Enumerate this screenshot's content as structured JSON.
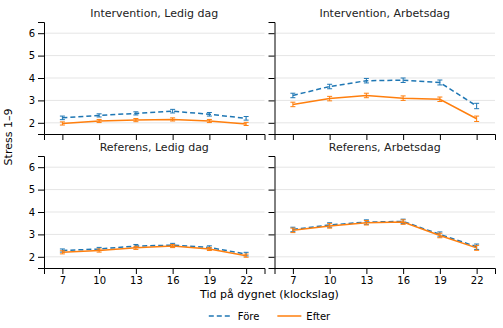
{
  "chart_data": [
    {
      "type": "line",
      "title": "Intervention, Ledig dag",
      "x": [
        7,
        10,
        13,
        16,
        19,
        22
      ],
      "series": [
        {
          "name": "Före",
          "line_style": "dashed",
          "values": [
            2.22,
            2.33,
            2.42,
            2.52,
            2.38,
            2.2
          ],
          "errors": [
            0.08,
            0.07,
            0.07,
            0.08,
            0.08,
            0.08
          ]
        },
        {
          "name": "Efter",
          "line_style": "solid",
          "values": [
            1.97,
            2.08,
            2.12,
            2.15,
            2.08,
            1.95
          ],
          "errors": [
            0.07,
            0.07,
            0.07,
            0.07,
            0.07,
            0.07
          ]
        }
      ],
      "xlim": [
        5.5,
        23.5
      ],
      "xticks": [
        7,
        10,
        13,
        16,
        19,
        22
      ],
      "ylim": [
        1.5,
        6.5
      ],
      "yticks": [
        2,
        3,
        4,
        5,
        6
      ],
      "grid": true,
      "tick_labels": "y",
      "ylabel": "Stress 1–9",
      "legend": "bottom"
    },
    {
      "type": "line",
      "title": "Intervention, Arbetsdag",
      "x": [
        7,
        10,
        13,
        16,
        19,
        22
      ],
      "series": [
        {
          "name": "Före",
          "line_style": "dashed",
          "values": [
            3.22,
            3.62,
            3.88,
            3.9,
            3.8,
            2.75
          ],
          "errors": [
            0.1,
            0.1,
            0.1,
            0.1,
            0.11,
            0.12
          ]
        },
        {
          "name": "Efter",
          "line_style": "solid",
          "values": [
            2.82,
            3.08,
            3.22,
            3.1,
            3.05,
            2.18
          ],
          "errors": [
            0.1,
            0.1,
            0.1,
            0.1,
            0.1,
            0.12
          ]
        }
      ],
      "xlim": [
        5.5,
        23.5
      ],
      "xticks": [
        7,
        10,
        13,
        16,
        19,
        22
      ],
      "ylim": [
        1.5,
        6.5
      ],
      "yticks": [
        2,
        3,
        4,
        5,
        6
      ],
      "grid": true,
      "tick_labels": false
    },
    {
      "type": "line",
      "title": "Referens, Ledig dag",
      "x": [
        7,
        10,
        13,
        16,
        19,
        22
      ],
      "series": [
        {
          "name": "Före",
          "line_style": "dashed",
          "values": [
            2.28,
            2.35,
            2.48,
            2.52,
            2.42,
            2.12
          ],
          "errors": [
            0.07,
            0.07,
            0.07,
            0.08,
            0.07,
            0.08
          ]
        },
        {
          "name": "Efter",
          "line_style": "solid",
          "values": [
            2.2,
            2.28,
            2.4,
            2.48,
            2.35,
            2.05
          ],
          "errors": [
            0.07,
            0.07,
            0.07,
            0.07,
            0.07,
            0.07
          ]
        }
      ],
      "xlim": [
        5.5,
        23.5
      ],
      "xticks": [
        7,
        10,
        13,
        16,
        19,
        22
      ],
      "ylim": [
        1.5,
        6.5
      ],
      "yticks": [
        2,
        3,
        4,
        5,
        6
      ],
      "grid": true,
      "xlabel": "Tid på dygnet (klockslag)"
    },
    {
      "type": "line",
      "title": "Referens, Arbetsdag",
      "x": [
        7,
        10,
        13,
        16,
        19,
        22
      ],
      "series": [
        {
          "name": "Före",
          "line_style": "dashed",
          "values": [
            3.22,
            3.42,
            3.55,
            3.58,
            3.0,
            2.45
          ],
          "errors": [
            0.1,
            0.1,
            0.1,
            0.1,
            0.11,
            0.12
          ]
        },
        {
          "name": "Efter",
          "line_style": "solid",
          "values": [
            3.18,
            3.38,
            3.52,
            3.55,
            2.95,
            2.4
          ],
          "errors": [
            0.1,
            0.1,
            0.1,
            0.1,
            0.1,
            0.11
          ]
        }
      ],
      "xlim": [
        5.5,
        23.5
      ],
      "xticks": [
        7,
        10,
        13,
        16,
        19,
        22
      ],
      "ylim": [
        1.5,
        6.5
      ],
      "yticks": [
        2,
        3,
        4,
        5,
        6
      ],
      "grid": true,
      "tick_labels": "x"
    }
  ]
}
